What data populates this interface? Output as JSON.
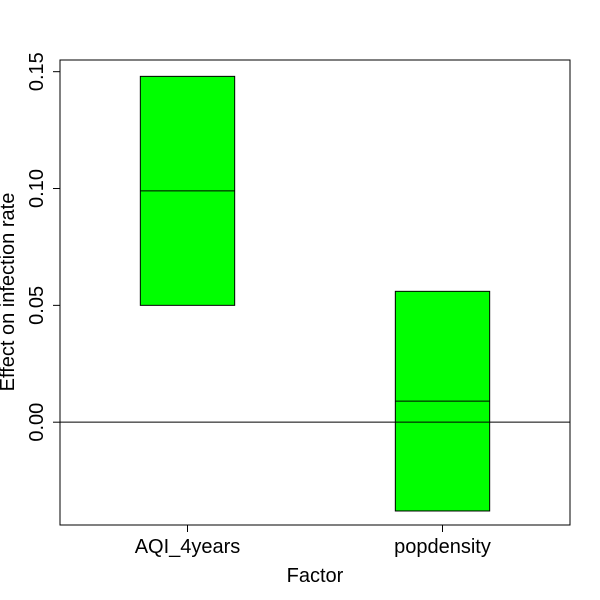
{
  "chart_data": {
    "type": "bar",
    "title": "",
    "xlabel": "Factor",
    "ylabel": "Effect on infection rate",
    "categories": [
      "AQI_4years",
      "popdensity"
    ],
    "series": [
      {
        "lower": [
          0.05,
          -0.038
        ],
        "estimate": [
          0.099,
          0.009
        ],
        "upper": [
          0.148,
          0.056
        ]
      }
    ],
    "yticks": [
      0.0,
      0.05,
      0.1,
      0.15
    ],
    "ytick_labels": [
      "0.00",
      "0.05",
      "0.10",
      "0.15"
    ],
    "ylim": [
      -0.044,
      0.155
    ],
    "reference_line": 0,
    "bar_color": "#00ff00",
    "grid": false
  }
}
